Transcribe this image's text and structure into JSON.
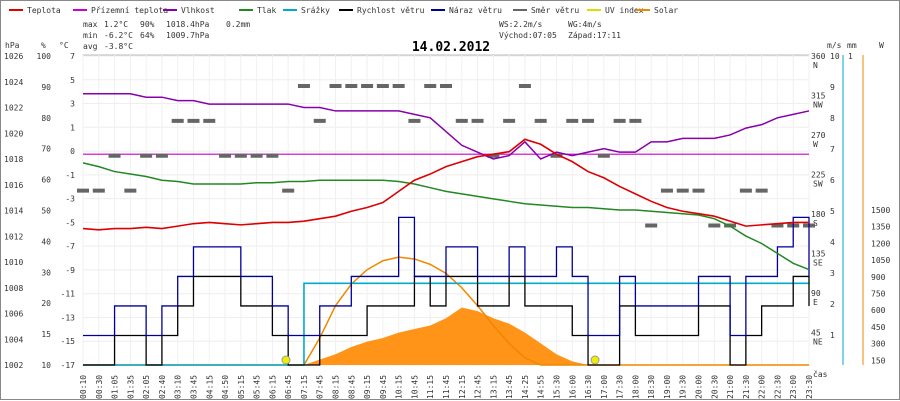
{
  "chart_data": {
    "type": "line",
    "title": "14.02.2012",
    "legend": [
      {
        "name": "Teplota",
        "color": "#dd0000"
      },
      {
        "name": "Přízemní teplota",
        "color": "#cc00cc"
      },
      {
        "name": "Vlhkost",
        "color": "#8800aa"
      },
      {
        "name": "Tlak",
        "color": "#228822"
      },
      {
        "name": "Srážky",
        "color": "#00aacc"
      },
      {
        "name": "Rychlost větru",
        "color": "#000000"
      },
      {
        "name": "Náraz větru",
        "color": "#000099"
      },
      {
        "name": "Směr větru",
        "color": "#666666"
      },
      {
        "name": "UV index",
        "color": "#dddd00"
      },
      {
        "name": "Solar",
        "color": "#ee8800"
      }
    ],
    "stats": {
      "max_label": "max",
      "max_temp": "1.2°C",
      "max_hum": "90%",
      "max_press": "1018.4hPa",
      "max_rain": "0.2mm",
      "min_label": "min",
      "min_temp": "-6.2°C",
      "min_hum": "64%",
      "min_press": "1009.7hPa",
      "avg_label": "avg",
      "avg_temp": "-3.8°C",
      "ws": "WS:2.2m/s",
      "wg": "WG:4m/s",
      "sunrise": "Východ:07:05",
      "sunset": "Západ:17:11"
    },
    "axes": {
      "hpa_unit": "hPa",
      "pct_unit": "%",
      "temp_unit": "°C",
      "hpa_ticks": [
        "1026",
        "1024",
        "1022",
        "1020",
        "1018",
        "1016",
        "1014",
        "1012",
        "1010",
        "1008",
        "1006",
        "1004",
        "1002"
      ],
      "pct_ticks": [
        "100",
        "90",
        "80",
        "70",
        "60",
        "50",
        "40",
        "30",
        "20",
        "15",
        "10"
      ],
      "temp_ticks": [
        "7",
        "5",
        "3",
        "1",
        "0",
        "-1",
        "-3",
        "-5",
        "-7",
        "-9",
        "-11",
        "-13",
        "-15",
        "-17"
      ],
      "dir_ticks": [
        "360 N",
        "315 NW",
        "270 W",
        "225 SW",
        "180 S",
        "135 SE",
        "90 E",
        "45 NE"
      ],
      "ms_unit": "m/s",
      "ms_ticks": [
        "10",
        "9",
        "8",
        "7",
        "6",
        "5",
        "4",
        "3",
        "2",
        "1"
      ],
      "mm_unit": "mm",
      "mm_ticks": [
        "1",
        "",
        "",
        "",
        "",
        "",
        "",
        "",
        "",
        ""
      ],
      "w_unit": "W",
      "w_ticks": [
        "1500",
        "1350",
        "1200",
        "1050",
        "900",
        "750",
        "600",
        "450",
        "300",
        "150"
      ],
      "x_unit": "čas",
      "x_ticks": [
        "00:10",
        "00:30",
        "01:05",
        "01:35",
        "02:05",
        "02:40",
        "03:10",
        "03:45",
        "04:15",
        "04:50",
        "05:15",
        "05:45",
        "06:15",
        "06:45",
        "07:15",
        "07:45",
        "08:15",
        "08:45",
        "09:15",
        "09:45",
        "10:15",
        "10:45",
        "11:15",
        "11:45",
        "12:15",
        "12:45",
        "13:15",
        "13:45",
        "14:25",
        "14:55",
        "15:30",
        "16:00",
        "16:30",
        "17:00",
        "17:30",
        "18:00",
        "18:30",
        "19:00",
        "19:30",
        "20:00",
        "20:30",
        "21:00",
        "21:30",
        "22:00",
        "22:30",
        "23:00",
        "23:30"
      ]
    },
    "series": [
      {
        "name": "Teplota",
        "unit": "°C",
        "values": [
          -6.0,
          -6.1,
          -6.0,
          -6.0,
          -5.9,
          -6.0,
          -5.8,
          -5.6,
          -5.5,
          -5.6,
          -5.7,
          -5.6,
          -5.5,
          -5.5,
          -5.4,
          -5.2,
          -5.0,
          -4.6,
          -4.3,
          -3.9,
          -3.0,
          -2.1,
          -1.6,
          -1.0,
          -0.6,
          -0.2,
          0.0,
          0.2,
          1.2,
          0.8,
          0.0,
          -0.6,
          -1.4,
          -1.9,
          -2.6,
          -3.2,
          -3.8,
          -4.3,
          -4.6,
          -4.8,
          -5.0,
          -5.4,
          -5.8,
          -5.7,
          -5.6,
          -5.5,
          -5.5
        ]
      },
      {
        "name": "Přízemní teplota",
        "unit": "°C",
        "values": [
          0,
          0,
          0,
          0,
          0,
          0,
          0,
          0,
          0,
          0,
          0,
          0,
          0,
          0,
          0,
          0,
          0,
          0,
          0,
          0,
          0,
          0,
          0,
          0,
          0,
          0,
          0,
          0,
          0,
          0,
          0,
          0,
          0,
          0,
          0,
          0,
          0,
          0,
          0,
          0,
          0,
          0,
          0,
          0,
          0,
          0,
          0
        ]
      },
      {
        "name": "Vlhkost",
        "unit": "%",
        "values": [
          89,
          89,
          89,
          89,
          88,
          88,
          87,
          87,
          86,
          86,
          86,
          86,
          86,
          86,
          85,
          85,
          84,
          84,
          84,
          84,
          84,
          83,
          82,
          78,
          74,
          72,
          70,
          71,
          75,
          70,
          72,
          71,
          72,
          73,
          72,
          72,
          75,
          75,
          76,
          76,
          76,
          77,
          79,
          80,
          82,
          83,
          84
        ]
      },
      {
        "name": "Tlak",
        "unit": "hPa",
        "values": [
          1018.3,
          1018.0,
          1017.6,
          1017.4,
          1017.2,
          1016.9,
          1016.8,
          1016.6,
          1016.6,
          1016.6,
          1016.6,
          1016.7,
          1016.7,
          1016.8,
          1016.8,
          1016.9,
          1016.9,
          1016.9,
          1016.9,
          1016.9,
          1016.8,
          1016.6,
          1016.3,
          1016.0,
          1015.8,
          1015.6,
          1015.4,
          1015.2,
          1015.0,
          1014.9,
          1014.8,
          1014.7,
          1014.7,
          1014.6,
          1014.5,
          1014.5,
          1014.4,
          1014.3,
          1014.2,
          1014.1,
          1013.8,
          1013.2,
          1012.4,
          1011.8,
          1011.0,
          1010.2,
          1009.7
        ]
      },
      {
        "name": "Rychlost větru",
        "unit": "m/s",
        "values": [
          0,
          0,
          1,
          1,
          0,
          1,
          2,
          3,
          3,
          3,
          2,
          2,
          1,
          0,
          0,
          1,
          1,
          1,
          2,
          2,
          2,
          3,
          2,
          3,
          3,
          2,
          2,
          3,
          2,
          2,
          2,
          1,
          0,
          0,
          2,
          1,
          1,
          1,
          1,
          2,
          2,
          0,
          1,
          2,
          2,
          3,
          2
        ]
      },
      {
        "name": "Náraz větru",
        "unit": "m/s",
        "values": [
          1,
          1,
          2,
          2,
          1,
          2,
          3,
          4,
          4,
          4,
          3,
          3,
          2,
          1,
          1,
          2,
          2,
          3,
          3,
          3,
          5,
          3,
          3,
          4,
          4,
          3,
          3,
          4,
          3,
          3,
          4,
          3,
          1,
          1,
          3,
          2,
          2,
          2,
          2,
          3,
          3,
          1,
          3,
          3,
          4,
          5,
          3
        ]
      },
      {
        "name": "Srážky",
        "unit": "mm",
        "values": [
          0,
          0,
          0,
          0,
          0,
          0,
          0,
          0,
          0,
          0,
          0,
          0,
          0,
          0,
          0.2,
          0.2,
          0.2,
          0.2,
          0.2,
          0.2,
          0.2,
          0.2,
          0.2,
          0.2,
          0.2,
          0.2,
          0.2,
          0.2,
          0.2,
          0.2,
          0.2,
          0.2,
          0.2,
          0.2,
          0.2,
          0.2,
          0.2,
          0.2,
          0.2,
          0.2,
          0.2,
          0.2,
          0.2,
          0.2,
          0.2,
          0.2,
          0.2
        ]
      },
      {
        "name": "Směr větru",
        "unit": "°",
        "values": [
          225,
          225,
          270,
          225,
          270,
          270,
          315,
          315,
          315,
          270,
          270,
          270,
          270,
          225,
          360,
          315,
          360,
          360,
          360,
          360,
          360,
          315,
          360,
          360,
          315,
          315,
          270,
          315,
          360,
          315,
          270,
          315,
          315,
          270,
          315,
          315,
          180,
          225,
          225,
          225,
          180,
          180,
          225,
          225,
          180,
          180,
          180
        ]
      },
      {
        "name": "Solar",
        "unit": "W",
        "values": [
          0,
          0,
          0,
          0,
          0,
          0,
          0,
          0,
          0,
          0,
          0,
          0,
          0,
          0,
          0,
          30,
          60,
          100,
          130,
          150,
          180,
          200,
          220,
          260,
          320,
          300,
          260,
          230,
          180,
          120,
          60,
          20,
          0,
          0,
          0,
          0,
          0,
          0,
          0,
          0,
          0,
          0,
          0,
          0,
          0,
          0,
          0
        ]
      },
      {
        "name": "Solar (teoretický)",
        "unit": "W",
        "values": [
          0,
          0,
          0,
          0,
          0,
          0,
          0,
          0,
          0,
          0,
          0,
          0,
          0,
          0,
          0,
          150,
          330,
          450,
          530,
          580,
          600,
          590,
          560,
          510,
          430,
          330,
          220,
          120,
          40,
          0,
          0,
          0,
          0,
          0,
          0,
          0,
          0,
          0,
          0,
          0,
          0,
          0,
          0,
          0,
          0,
          0,
          0
        ]
      }
    ]
  }
}
